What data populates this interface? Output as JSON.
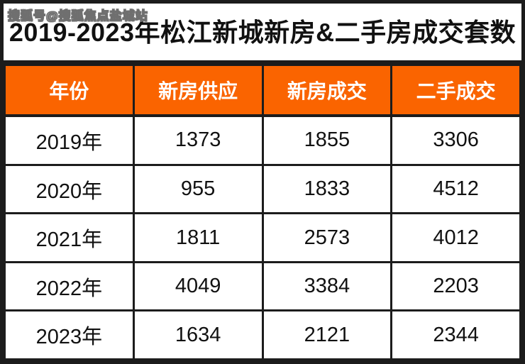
{
  "watermark": "搜狐号@搜狐焦点盐城站",
  "title": "2019-2023年松江新城新房&二手房成交套数",
  "colors": {
    "header_bg": "#fa6400",
    "header_text": "#ffffff",
    "border": "#1c1c1c",
    "body_text": "#111111",
    "title_text": "#111111",
    "watermark_text": "#ececec"
  },
  "table": {
    "headers": [
      "年份",
      "新房供应",
      "新房成交",
      "二手成交"
    ],
    "rows": [
      [
        "2019年",
        "1373",
        "1855",
        "3306"
      ],
      [
        "2020年",
        "955",
        "1833",
        "4512"
      ],
      [
        "2021年",
        "1811",
        "2573",
        "4012"
      ],
      [
        "2022年",
        "4049",
        "3384",
        "2203"
      ],
      [
        "2023年",
        "1634",
        "2121",
        "2344"
      ]
    ]
  },
  "chart_data": {
    "type": "table",
    "title": "2019-2023年松江新城新房&二手房成交套数",
    "categories": [
      "2019年",
      "2020年",
      "2021年",
      "2022年",
      "2023年"
    ],
    "series": [
      {
        "name": "新房供应",
        "values": [
          1373,
          955,
          1811,
          4049,
          1634
        ]
      },
      {
        "name": "新房成交",
        "values": [
          1855,
          1833,
          2573,
          3384,
          2121
        ]
      },
      {
        "name": "二手成交",
        "values": [
          3306,
          4512,
          4012,
          2203,
          2344
        ]
      }
    ]
  }
}
